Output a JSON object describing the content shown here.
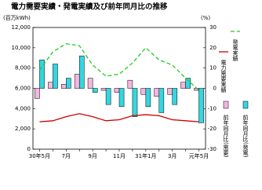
{
  "chart_data": {
    "type": "bar-line",
    "title": "電力需要実績・発電実績及び前年同月比の推移",
    "y_label": "(百万kWh)",
    "y2_label": "(%)",
    "categories": [
      "30年5月",
      null,
      "7月",
      null,
      "9月",
      null,
      "11月",
      null,
      "31年1月",
      null,
      "3月",
      null,
      "元年5月"
    ],
    "series": [
      {
        "name": "発電実績",
        "type": "line",
        "color": "#22cc22",
        "dashed": true,
        "values": [
          7800,
          9600,
          10400,
          10200,
          8300,
          7200,
          7400,
          8500,
          10000,
          8800,
          8300,
          7000,
          5800
        ]
      },
      {
        "name": "電力需要実績",
        "type": "line",
        "color": "#cc0000",
        "values": [
          2700,
          2800,
          3200,
          3500,
          3200,
          2800,
          2900,
          3300,
          3400,
          3300,
          2900,
          2800,
          2700
        ]
      },
      {
        "name": "前年同月比(需要)",
        "type": "bar",
        "axis": "y2",
        "color": "#f4b6e0",
        "values": [
          -5,
          3,
          2,
          7,
          5,
          -1,
          -2,
          4,
          -3,
          -4,
          -3,
          3,
          -1
        ]
      },
      {
        "name": "前年同月比(発電)",
        "type": "bar",
        "axis": "y2",
        "color": "#33d6e0",
        "values": [
          14,
          12,
          5,
          16,
          -2,
          -8,
          -9,
          -14,
          -9,
          -12,
          -8,
          5,
          -17
        ]
      }
    ],
    "ylim": [
      0,
      12000
    ],
    "yticks": [
      0,
      {
        "value": 2000,
        "label": "2,000"
      },
      {
        "value": 4000,
        "label": "4,000"
      },
      {
        "value": 6000,
        "label": "6,000"
      },
      {
        "value": 8000,
        "label": "8,000"
      },
      {
        "value": 10000,
        "label": "10,000"
      },
      {
        "value": 12000,
        "label": "12,000"
      }
    ],
    "y2lim": [
      -30,
      30
    ],
    "y2ticks": [
      -30,
      -20,
      -10,
      0,
      10,
      20,
      30
    ]
  }
}
